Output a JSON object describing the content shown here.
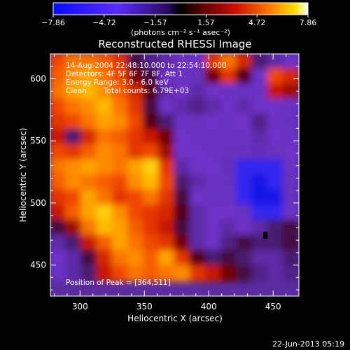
{
  "chart_data": {
    "type": "heatmap",
    "title": "Reconstructed RHESSI Image",
    "xlabel": "Heliocentric X (arcsec)",
    "ylabel": "Heliocentric Y (arcsec)",
    "xlim": [
      277,
      470
    ],
    "ylim": [
      425,
      620
    ],
    "xticks": [
      300,
      350,
      400,
      450
    ],
    "yticks": [
      450,
      500,
      550,
      600
    ],
    "colorbar": {
      "label": "(photons cm⁻² s⁻¹ asec⁻²)",
      "min": -7.86,
      "max": 7.86,
      "ticks": [
        "−7.86",
        "−4.72",
        "−1.57",
        "1.57",
        "4.72",
        "7.86"
      ]
    },
    "annotations": {
      "time_range": "14-Aug-2004 22:48:10.000 to 22:54:10.000",
      "detectors": "Detectors: 4F 5F 6F 7F 8F, Att 1",
      "energy": "Energy Range: 3.0 - 6.0 keV",
      "method": "Clean",
      "counts": "Total counts: 6.79E+03",
      "peak": "Position of Peak = [364,511]"
    },
    "peak_position": [
      364,
      511
    ],
    "min_position": [
      444,
      474
    ],
    "intensity_grid": {
      "x_start": 277,
      "x_step": 12.06,
      "y_start": 620,
      "y_step": -12.19,
      "rows": [
        [
          0.6,
          0.7,
          0.7,
          0.65,
          0.55,
          0.25,
          0.18,
          0.15,
          0.12,
          0.1,
          0.55,
          0.7,
          0.5,
          0.2,
          0.15,
          0.1
        ],
        [
          0.65,
          0.75,
          0.8,
          0.7,
          0.6,
          0.35,
          0.25,
          0.12,
          0.1,
          0.08,
          0.35,
          0.55,
          0.3,
          0.12,
          0.6,
          0.5
        ],
        [
          0.7,
          0.8,
          0.85,
          0.75,
          0.65,
          0.5,
          0.3,
          0.15,
          0.12,
          0.15,
          0.12,
          0.1,
          0.1,
          0.1,
          0.45,
          0.4
        ],
        [
          0.6,
          0.7,
          0.75,
          0.85,
          0.7,
          0.55,
          0.25,
          0.12,
          0.15,
          0.18,
          0.15,
          0.12,
          0.15,
          0.12,
          0.12,
          0.1
        ],
        [
          0.55,
          0.6,
          0.7,
          0.8,
          0.75,
          0.6,
          0.3,
          0.2,
          0.1,
          0.08,
          0.12,
          0.1,
          0.12,
          0.18,
          0.1,
          0.08
        ],
        [
          0.45,
          0.2,
          0.5,
          0.7,
          0.65,
          0.55,
          0.45,
          0.35,
          0.12,
          0.1,
          0.1,
          0.1,
          0.1,
          0.15,
          0.12,
          0.1
        ],
        [
          0.6,
          0.55,
          0.65,
          0.75,
          0.7,
          0.55,
          0.6,
          0.4,
          0.12,
          0.12,
          0.1,
          0.08,
          0.08,
          0.06,
          0.08,
          0.12
        ],
        [
          0.7,
          0.75,
          0.8,
          0.75,
          0.7,
          0.8,
          0.9,
          0.55,
          0.15,
          0.12,
          0.12,
          0.06,
          0.04,
          0.03,
          0.05,
          0.1
        ],
        [
          0.65,
          0.75,
          0.7,
          0.65,
          0.6,
          0.75,
          0.85,
          0.6,
          0.2,
          0.15,
          0.1,
          0.08,
          0.03,
          0.02,
          0.03,
          0.08
        ],
        [
          0.55,
          0.6,
          0.8,
          0.7,
          0.55,
          0.6,
          0.7,
          0.55,
          0.25,
          0.12,
          0.1,
          0.1,
          0.04,
          0.02,
          0.0,
          0.08
        ],
        [
          0.45,
          0.65,
          0.8,
          0.9,
          0.75,
          0.6,
          0.55,
          0.5,
          0.3,
          0.15,
          0.12,
          0.12,
          0.08,
          0.05,
          0.04,
          0.1
        ],
        [
          0.25,
          0.4,
          0.7,
          0.85,
          0.8,
          0.65,
          0.55,
          0.45,
          0.25,
          0.15,
          0.12,
          0.15,
          0.12,
          0.15,
          0.2,
          0.25
        ],
        [
          0.15,
          0.2,
          0.45,
          0.65,
          0.8,
          0.7,
          0.6,
          0.55,
          0.35,
          0.15,
          0.12,
          0.18,
          0.25,
          0.2,
          0.2,
          0.25
        ],
        [
          0.12,
          0.15,
          0.25,
          0.5,
          0.7,
          0.75,
          0.65,
          0.8,
          0.55,
          0.3,
          0.2,
          0.25,
          0.2,
          0.15,
          0.15,
          0.2
        ],
        [
          0.1,
          0.15,
          0.2,
          0.45,
          0.6,
          0.7,
          0.65,
          0.7,
          0.75,
          0.55,
          0.45,
          0.35,
          0.25,
          0.18,
          0.15,
          0.18
        ]
      ]
    }
  }
}
